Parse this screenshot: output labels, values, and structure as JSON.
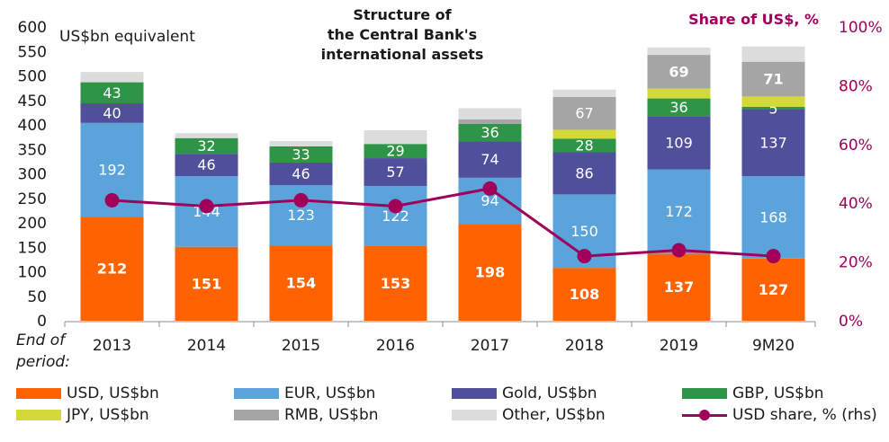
{
  "chart_data": {
    "type": "bar",
    "stacked": true,
    "title": "Structure of the Central Bank's international assets",
    "title_lines": [
      "Structure of",
      "the Central Bank's",
      "international assets"
    ],
    "ylabel": "US$bn equivalent",
    "y2label": "Share of US$, %",
    "xlabel": "End of period:",
    "xlabel_lines": [
      "End of",
      "period:"
    ],
    "ylim": [
      0,
      600
    ],
    "y_ticks": [
      0,
      50,
      100,
      150,
      200,
      250,
      300,
      350,
      400,
      450,
      500,
      550,
      600
    ],
    "y2lim": [
      0,
      100
    ],
    "y2_ticks": [
      "0%",
      "20%",
      "40%",
      "60%",
      "80%",
      "100%"
    ],
    "grid": false,
    "legend_position": "bottom",
    "categories": [
      "2013",
      "2014",
      "2015",
      "2016",
      "2017",
      "2018",
      "2019",
      "9M20"
    ],
    "series": [
      {
        "name": "USD, US$bn",
        "color": "#ff6200",
        "values": [
          212,
          151,
          154,
          153,
          198,
          108,
          137,
          127
        ],
        "labels": [
          "212",
          "151",
          "154",
          "153",
          "198",
          "108",
          "137",
          "127"
        ],
        "bold_labels": true
      },
      {
        "name": "EUR, US$bn",
        "color": "#5ba4db",
        "values": [
          192,
          144,
          123,
          122,
          94,
          150,
          172,
          168
        ],
        "labels": [
          "192",
          "144",
          "123",
          "122",
          "94",
          "150",
          "172",
          "168"
        ]
      },
      {
        "name": "Gold, US$bn",
        "color": "#4f4f9b",
        "values": [
          40,
          46,
          46,
          57,
          74,
          86,
          109,
          137
        ],
        "labels": [
          "40",
          "46",
          "46",
          "57",
          "74",
          "86",
          "109",
          "137"
        ]
      },
      {
        "name": "GBP, US$bn",
        "color": "#2e9448",
        "values": [
          43,
          32,
          33,
          29,
          36,
          28,
          36,
          5
        ],
        "labels": [
          "43",
          "32",
          "33",
          "29",
          "36",
          "28",
          "36",
          "5"
        ]
      },
      {
        "name": "JPY, US$bn",
        "color": "#d4d93a",
        "values": [
          0,
          0,
          0,
          0,
          0,
          18,
          20,
          21
        ],
        "labels": [
          "",
          "",
          "",
          "",
          "",
          "",
          "",
          ""
        ]
      },
      {
        "name": "RMB, US$bn",
        "color": "#a5a5a5",
        "values": [
          0,
          0,
          0,
          0,
          9,
          67,
          69,
          71
        ],
        "labels": [
          "",
          "",
          "",
          "",
          "",
          "67",
          "69",
          "71"
        ],
        "bold_labels_from": 6
      },
      {
        "name": "Other, US$bn",
        "color": "#dcdcdc",
        "values": [
          21,
          10,
          11,
          28,
          23,
          15,
          15,
          31
        ],
        "labels": [
          "",
          "",
          "",
          "",
          "",
          "",
          "",
          ""
        ]
      }
    ],
    "line_series": {
      "name": "USD share, % (rhs)",
      "color": "#a0005a",
      "axis": "right",
      "values": [
        41,
        39,
        41,
        39,
        45,
        22,
        24,
        22
      ]
    }
  }
}
